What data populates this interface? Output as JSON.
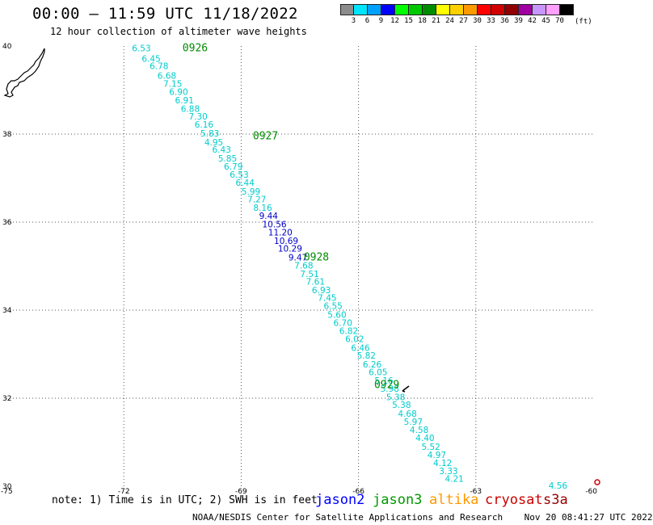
{
  "header": {
    "title": "00:00 – 11:59 UTC 11/18/2022",
    "subtitle": "12 hour collection of altimeter wave heights"
  },
  "legend": {
    "unit": "(ft)",
    "colors": [
      "#8c8c8c",
      "#00e5ff",
      "#00a0ff",
      "#0000ff",
      "#00ff00",
      "#00c800",
      "#008c00",
      "#ffff00",
      "#ffd000",
      "#ff9900",
      "#ff0000",
      "#d00000",
      "#900000",
      "#a000a0",
      "#c896ff",
      "#ffa0ff",
      "#000000"
    ],
    "labels": [
      "3",
      "6",
      "9",
      "12",
      "15",
      "18",
      "21",
      "24",
      "27",
      "30",
      "33",
      "36",
      "39",
      "42",
      "45",
      "70"
    ]
  },
  "chart_data": {
    "type": "scatter",
    "title": "12 hour collection of altimeter wave heights",
    "xlim": [
      -75,
      -60
    ],
    "ylim": [
      30,
      40
    ],
    "x_ticks": [
      "-75",
      "-72",
      "-69",
      "-66",
      "-63",
      "-60"
    ],
    "y_ticks": [
      "30",
      "32",
      "34",
      "36",
      "38",
      "40"
    ],
    "grid": true,
    "track_labels": [
      {
        "text": "0926",
        "lon": -70.5,
        "lat": 39.95
      },
      {
        "text": "0927",
        "lon": -68.7,
        "lat": 37.95
      },
      {
        "text": "0928",
        "lon": -67.4,
        "lat": 35.2
      },
      {
        "text": "0929",
        "lon": -65.6,
        "lat": 32.3
      }
    ],
    "points": [
      {
        "lon": -71.55,
        "lat": 39.95,
        "swh": "6.53",
        "color": "#00cccc"
      },
      {
        "lon": -71.3,
        "lat": 39.72,
        "swh": "6.45",
        "color": "#00cccc"
      },
      {
        "lon": -71.1,
        "lat": 39.55,
        "swh": "6.78",
        "color": "#00cccc"
      },
      {
        "lon": -70.9,
        "lat": 39.33,
        "swh": "6.68",
        "color": "#00cccc"
      },
      {
        "lon": -70.75,
        "lat": 39.15,
        "swh": "7.15",
        "color": "#00cccc"
      },
      {
        "lon": -70.6,
        "lat": 38.96,
        "swh": "6.90",
        "color": "#00cccc"
      },
      {
        "lon": -70.45,
        "lat": 38.77,
        "swh": "6.91",
        "color": "#00cccc"
      },
      {
        "lon": -70.3,
        "lat": 38.58,
        "swh": "6.88",
        "color": "#00cccc"
      },
      {
        "lon": -70.1,
        "lat": 38.4,
        "swh": "7.30",
        "color": "#00cccc"
      },
      {
        "lon": -69.95,
        "lat": 38.22,
        "swh": "6.16",
        "color": "#00cccc"
      },
      {
        "lon": -69.8,
        "lat": 38.02,
        "swh": "5.83",
        "color": "#00cccc"
      },
      {
        "lon": -69.7,
        "lat": 37.82,
        "swh": "4.95",
        "color": "#00cccc"
      },
      {
        "lon": -69.5,
        "lat": 37.65,
        "swh": "6.43",
        "color": "#00cccc"
      },
      {
        "lon": -69.35,
        "lat": 37.45,
        "swh": "5.85",
        "color": "#00cccc"
      },
      {
        "lon": -69.2,
        "lat": 37.27,
        "swh": "6.79",
        "color": "#00cccc"
      },
      {
        "lon": -69.05,
        "lat": 37.08,
        "swh": "6.53",
        "color": "#00cccc"
      },
      {
        "lon": -68.9,
        "lat": 36.9,
        "swh": "6.44",
        "color": "#00cccc"
      },
      {
        "lon": -68.75,
        "lat": 36.7,
        "swh": "5.99",
        "color": "#00cccc"
      },
      {
        "lon": -68.6,
        "lat": 36.52,
        "swh": "7.27",
        "color": "#00cccc"
      },
      {
        "lon": -68.45,
        "lat": 36.33,
        "swh": "8.16",
        "color": "#00cccc"
      },
      {
        "lon": -68.3,
        "lat": 36.15,
        "swh": "9.44",
        "color": "#0000cc"
      },
      {
        "lon": -68.15,
        "lat": 35.95,
        "swh": "10.56",
        "color": "#0000cc"
      },
      {
        "lon": -68.0,
        "lat": 35.77,
        "swh": "11.20",
        "color": "#0000cc"
      },
      {
        "lon": -67.85,
        "lat": 35.58,
        "swh": "10.69",
        "color": "#0000cc"
      },
      {
        "lon": -67.75,
        "lat": 35.4,
        "swh": "10.29",
        "color": "#0000cc"
      },
      {
        "lon": -67.55,
        "lat": 35.2,
        "swh": "9.47",
        "color": "#0000cc"
      },
      {
        "lon": -67.4,
        "lat": 35.02,
        "swh": "7.68",
        "color": "#00cccc"
      },
      {
        "lon": -67.25,
        "lat": 34.83,
        "swh": "7.51",
        "color": "#00cccc"
      },
      {
        "lon": -67.1,
        "lat": 34.65,
        "swh": "7.61",
        "color": "#00cccc"
      },
      {
        "lon": -66.95,
        "lat": 34.46,
        "swh": "6.93",
        "color": "#00cccc"
      },
      {
        "lon": -66.8,
        "lat": 34.28,
        "swh": "7.45",
        "color": "#00cccc"
      },
      {
        "lon": -66.65,
        "lat": 34.1,
        "swh": "6.55",
        "color": "#00cccc"
      },
      {
        "lon": -66.55,
        "lat": 33.9,
        "swh": "5.60",
        "color": "#00cccc"
      },
      {
        "lon": -66.4,
        "lat": 33.72,
        "swh": "6.70",
        "color": "#00cccc"
      },
      {
        "lon": -66.25,
        "lat": 33.53,
        "swh": "6.82",
        "color": "#00cccc"
      },
      {
        "lon": -66.1,
        "lat": 33.35,
        "swh": "6.02",
        "color": "#00cccc"
      },
      {
        "lon": -65.95,
        "lat": 33.15,
        "swh": "6.46",
        "color": "#00cccc"
      },
      {
        "lon": -65.8,
        "lat": 32.97,
        "swh": "5.82",
        "color": "#00cccc"
      },
      {
        "lon": -65.65,
        "lat": 32.77,
        "swh": "6.26",
        "color": "#00cccc"
      },
      {
        "lon": -65.5,
        "lat": 32.6,
        "swh": "6.05",
        "color": "#00cccc"
      },
      {
        "lon": -65.35,
        "lat": 32.4,
        "swh": "5.16",
        "color": "#00cccc"
      },
      {
        "lon": -65.2,
        "lat": 32.22,
        "swh": "5.98",
        "color": "#00cccc"
      },
      {
        "lon": -65.05,
        "lat": 32.03,
        "swh": "5.38",
        "color": "#00cccc"
      },
      {
        "lon": -64.9,
        "lat": 31.85,
        "swh": "5.38",
        "color": "#00cccc"
      },
      {
        "lon": -64.75,
        "lat": 31.65,
        "swh": "4.68",
        "color": "#00cccc"
      },
      {
        "lon": -64.6,
        "lat": 31.47,
        "swh": "5.97",
        "color": "#00cccc"
      },
      {
        "lon": -64.45,
        "lat": 31.28,
        "swh": "4.58",
        "color": "#00cccc"
      },
      {
        "lon": -64.3,
        "lat": 31.1,
        "swh": "4.40",
        "color": "#00cccc"
      },
      {
        "lon": -64.15,
        "lat": 30.9,
        "swh": "5.52",
        "color": "#00cccc"
      },
      {
        "lon": -64.0,
        "lat": 30.72,
        "swh": "4.97",
        "color": "#00cccc"
      },
      {
        "lon": -63.85,
        "lat": 30.53,
        "swh": "4.12",
        "color": "#00cccc"
      },
      {
        "lon": -63.7,
        "lat": 30.35,
        "swh": "3.33",
        "color": "#00cccc"
      },
      {
        "lon": -63.55,
        "lat": 30.17,
        "swh": "4.21",
        "color": "#00cccc"
      },
      {
        "lon": -60.9,
        "lat": 30.02,
        "swh": "4.56",
        "color": "#00cccc"
      }
    ]
  },
  "footer": {
    "note": "note: 1) Time is in UTC; 2) SWH is in feet",
    "satellites": [
      {
        "name": "jason2",
        "color": "#0000ff"
      },
      {
        "name": "jason3",
        "color": "#009900"
      },
      {
        "name": "altika",
        "color": "#ff9900"
      },
      {
        "name": "cryosat",
        "color": "#cc0000"
      },
      {
        "name": "s3a",
        "color": "#990000"
      }
    ],
    "credit": "NOAA/NESDIS Center for Satellite Applications and Research    Nov 20 08:41:27 UTC 2022"
  }
}
